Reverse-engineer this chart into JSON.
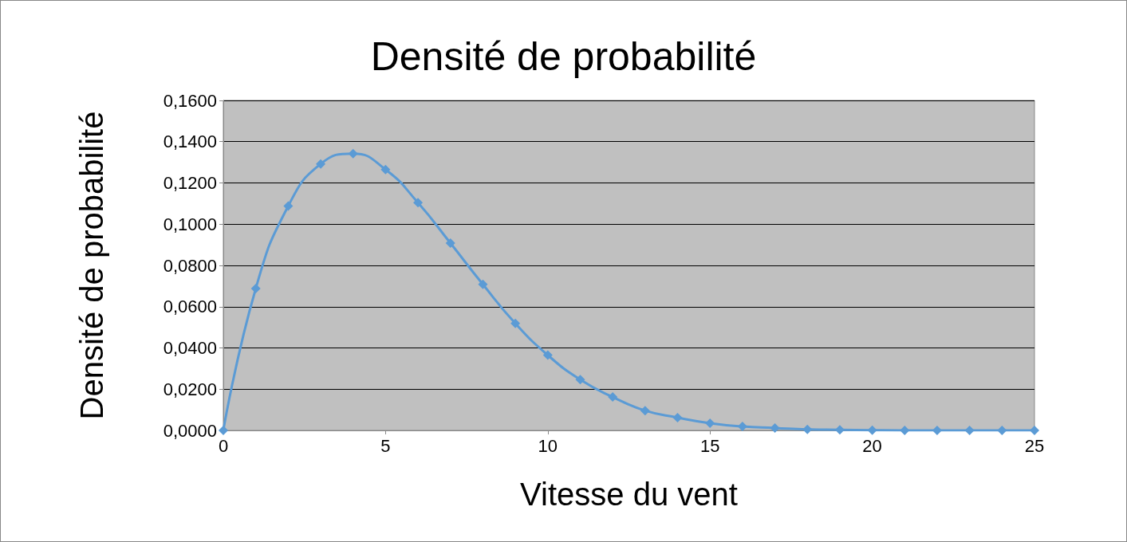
{
  "chart_data": {
    "type": "line",
    "title": "Densité de probabilité",
    "xlabel": "Vitesse du vent",
    "ylabel": "Densité de probabilité",
    "x": [
      0,
      1,
      2,
      3,
      4,
      5,
      6,
      7,
      8,
      9,
      10,
      11,
      12,
      13,
      14,
      15,
      16,
      17,
      18,
      19,
      20,
      21,
      22,
      23,
      24,
      25
    ],
    "series": [
      {
        "color": "#5b9bd5",
        "values": [
          0,
          0.0688,
          0.1088,
          0.1292,
          0.1342,
          0.1265,
          0.1104,
          0.0908,
          0.0708,
          0.0519,
          0.0365,
          0.0246,
          0.0162,
          0.0096,
          0.0062,
          0.0035,
          0.0019,
          0.0012,
          0.0005,
          0.0003,
          0.0001,
          0,
          0,
          0,
          0,
          0
        ]
      }
    ],
    "xlim": [
      0,
      25
    ],
    "xticks": [
      0,
      5,
      10,
      15,
      20,
      25
    ],
    "ylim": [
      0,
      0.16
    ],
    "yticks": [
      {
        "value": 0,
        "label": "0,0000"
      },
      {
        "value": 0.02,
        "label": "0,0200"
      },
      {
        "value": 0.04,
        "label": "0,0400"
      },
      {
        "value": 0.06,
        "label": "0,0600"
      },
      {
        "value": 0.08,
        "label": "0,0800"
      },
      {
        "value": 0.1,
        "label": "0,1000"
      },
      {
        "value": 0.12,
        "label": "0,1200"
      },
      {
        "value": 0.14,
        "label": "0,1400"
      },
      {
        "value": 0.16,
        "label": "0,1600"
      }
    ],
    "grid": "y",
    "marker": "diamond",
    "line_style": "solid"
  }
}
